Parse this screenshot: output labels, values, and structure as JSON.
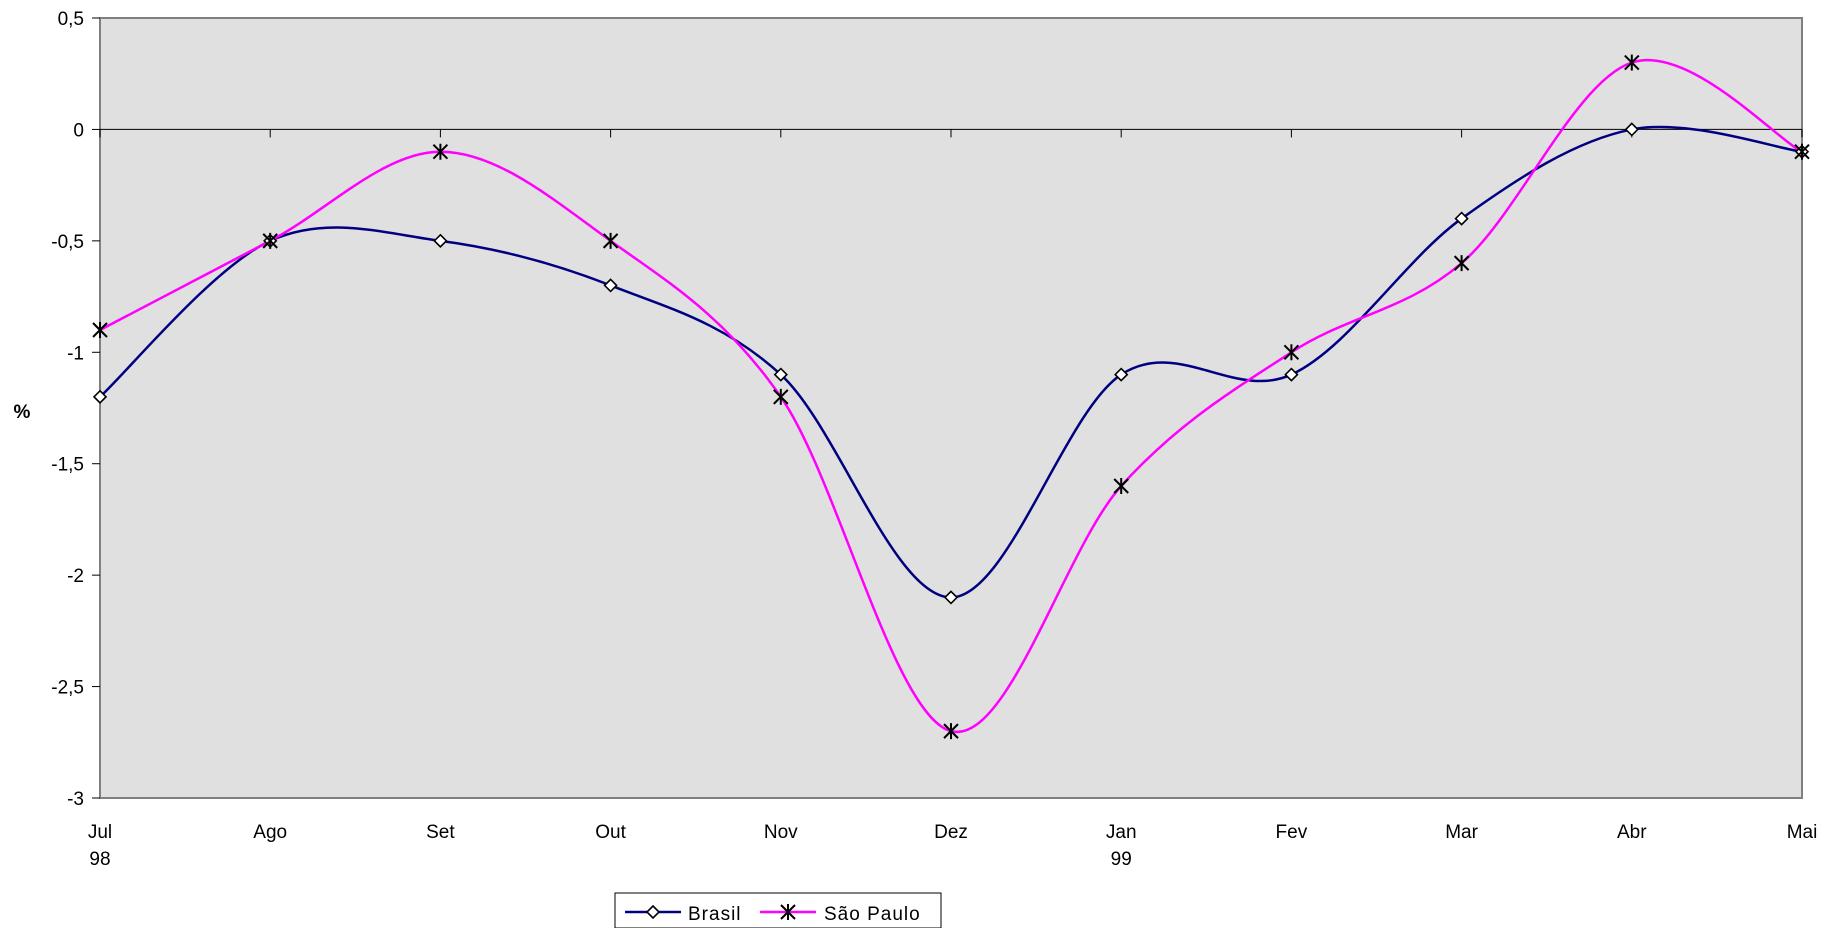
{
  "chart_data": {
    "type": "line",
    "smoothed": true,
    "categories": [
      "Jul",
      "Ago",
      "Set",
      "Out",
      "Nov",
      "Dez",
      "Jan",
      "Fev",
      "Mar",
      "Abr",
      "Mai"
    ],
    "category_sublabels": [
      "98",
      "",
      "",
      "",
      "",
      "",
      "99",
      "",
      "",
      "",
      ""
    ],
    "ylabel": "%",
    "ylim": [
      -3,
      0.5
    ],
    "yticks": [
      0.5,
      0,
      -0.5,
      -1,
      -1.5,
      -2,
      -2.5,
      -3
    ],
    "ytick_labels": [
      "0,5",
      "0",
      "-0,5",
      "-1",
      "-1,5",
      "-2",
      "-2,5",
      "-3"
    ],
    "plot_background": "#e0e0e0",
    "grid": false,
    "legend_position": "bottom",
    "series": [
      {
        "name": "Brasil",
        "color": "#000080",
        "marker": "diamond",
        "values": [
          -1.2,
          -0.5,
          -0.5,
          -0.7,
          -1.1,
          -2.1,
          -1.1,
          -1.1,
          -0.4,
          0.0,
          -0.1
        ]
      },
      {
        "name": "São Paulo",
        "color": "#ff00ff",
        "marker": "star",
        "values": [
          -0.9,
          -0.5,
          -0.1,
          -0.5,
          -1.2,
          -2.7,
          -1.6,
          -1.0,
          -0.6,
          0.3,
          -0.1
        ]
      }
    ]
  }
}
